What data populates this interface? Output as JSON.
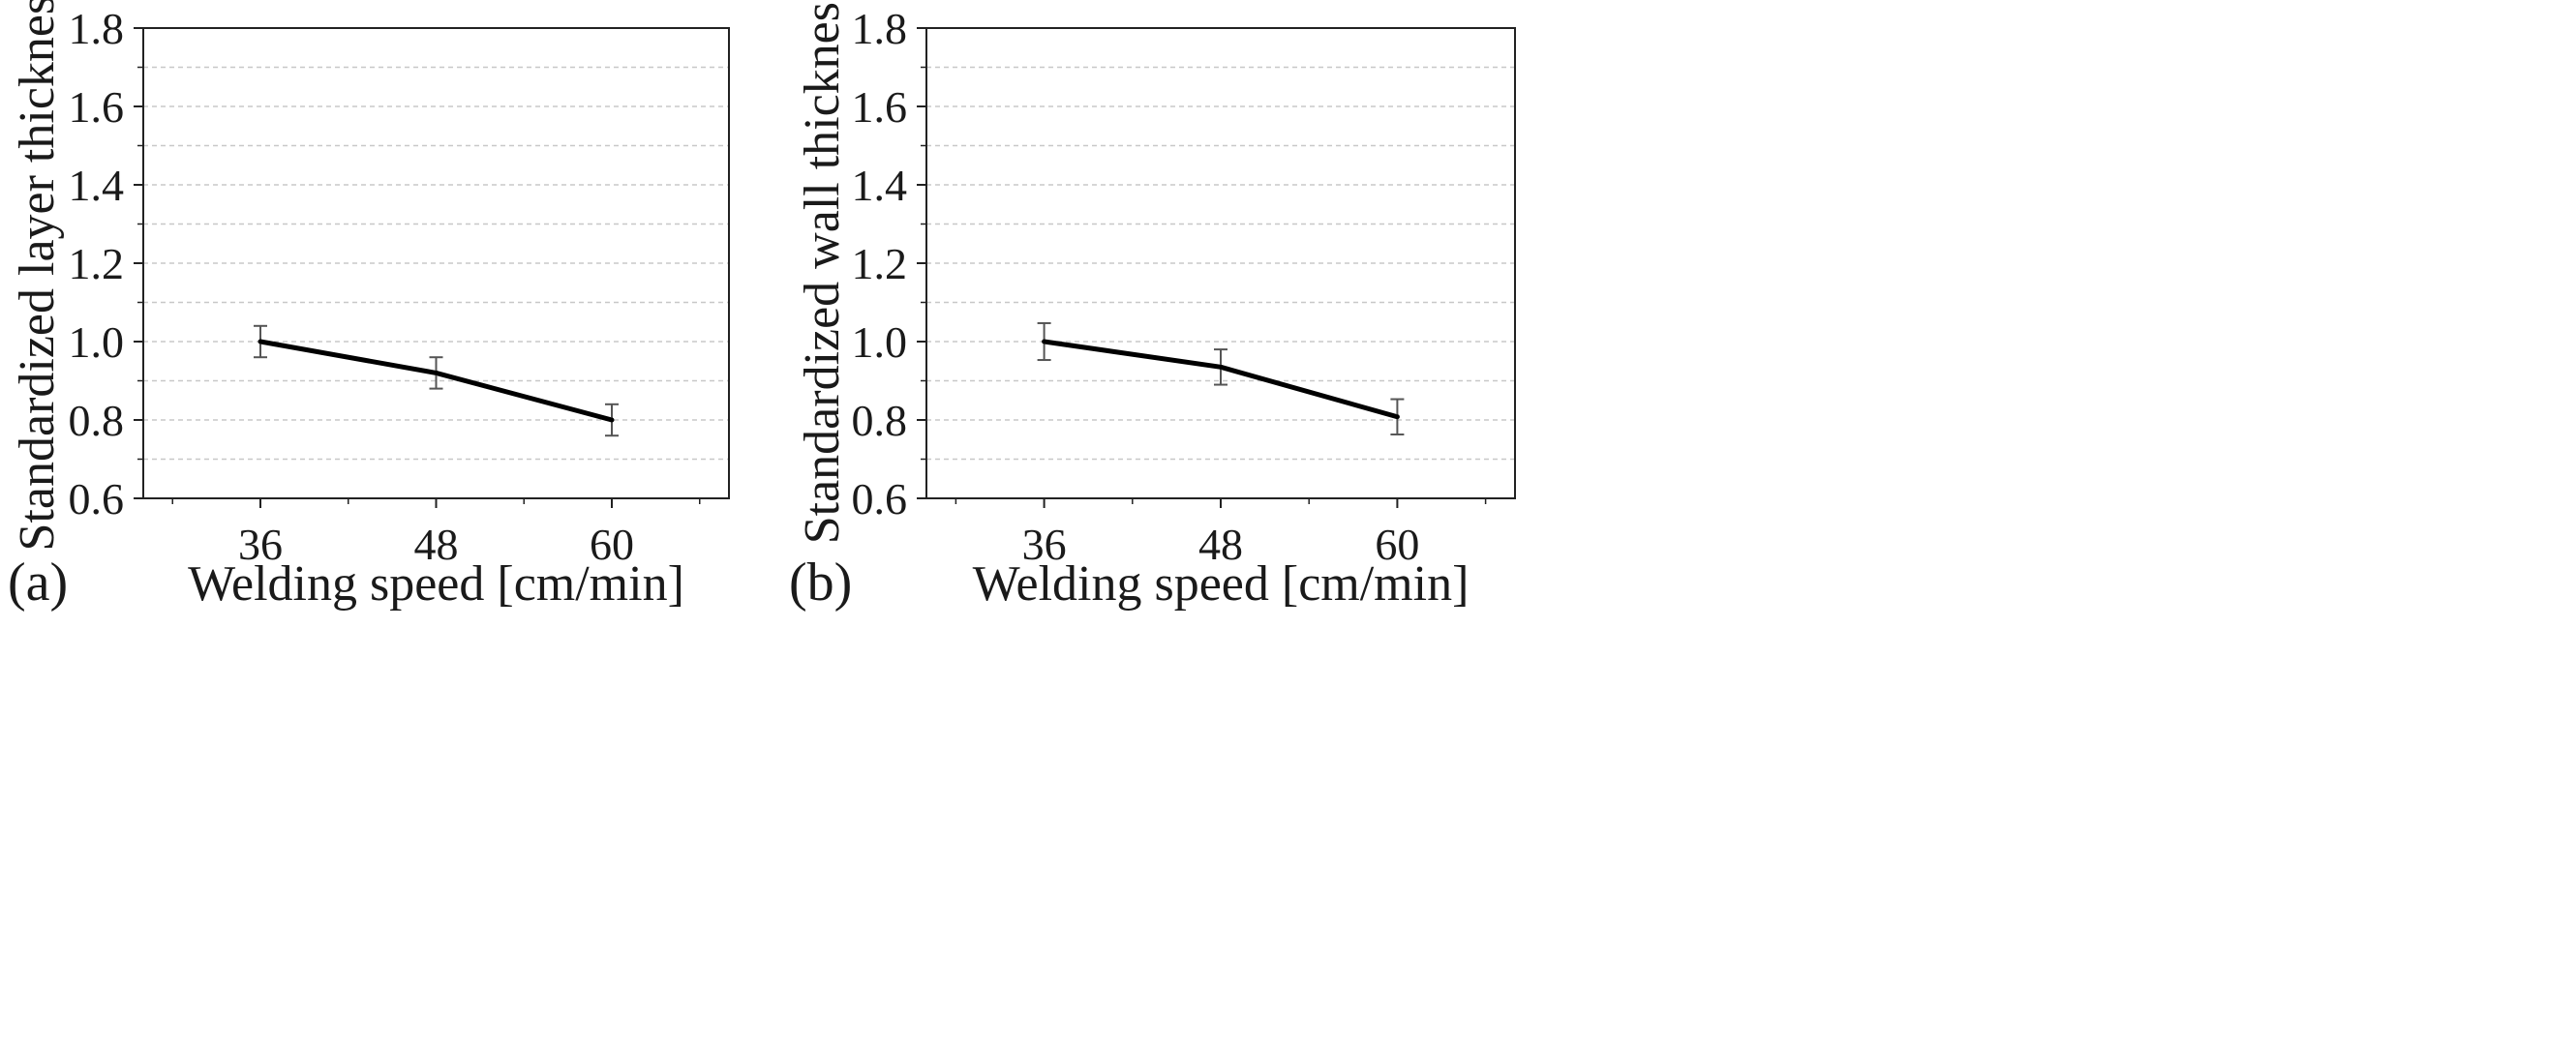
{
  "chart_data": [
    {
      "type": "line",
      "panel_label": "(a)",
      "title": "",
      "xlabel": "Welding speed [cm/min]",
      "ylabel": "Standardized layer thickness",
      "x": [
        36,
        48,
        60
      ],
      "x_tick_labels": [
        "36",
        "48",
        "60"
      ],
      "xlim": [
        28,
        68
      ],
      "ylim": [
        0.6,
        1.8
      ],
      "y_ticks": [
        0.6,
        0.8,
        1.0,
        1.2,
        1.4,
        1.6,
        1.8
      ],
      "y_tick_labels": [
        "0.6",
        "0.8",
        "1.0",
        "1.2",
        "1.4",
        "1.6",
        "1.8"
      ],
      "grid": true,
      "series": [
        {
          "name": "Layer thickness",
          "values": [
            1.0,
            0.92,
            0.8
          ],
          "error": [
            0.04,
            0.04,
            0.04
          ]
        }
      ]
    },
    {
      "type": "line",
      "panel_label": "(b)",
      "title": "",
      "xlabel": "Welding speed [cm/min]",
      "ylabel": "Standardized wall thickness",
      "x": [
        36,
        48,
        60
      ],
      "x_tick_labels": [
        "36",
        "48",
        "60"
      ],
      "xlim": [
        28,
        68
      ],
      "ylim": [
        0.6,
        1.8
      ],
      "y_ticks": [
        0.6,
        0.8,
        1.0,
        1.2,
        1.4,
        1.6,
        1.8
      ],
      "y_tick_labels": [
        "0.6",
        "0.8",
        "1.0",
        "1.2",
        "1.4",
        "1.6",
        "1.8"
      ],
      "grid": true,
      "series": [
        {
          "name": "Wall thickness",
          "values": [
            1.0,
            0.935,
            0.808
          ],
          "error": [
            0.047,
            0.045,
            0.045
          ]
        }
      ]
    }
  ],
  "colors": {
    "line": "#000000",
    "errorbar": "#555555",
    "grid": "#c8c8c8",
    "axis": "#222222"
  }
}
